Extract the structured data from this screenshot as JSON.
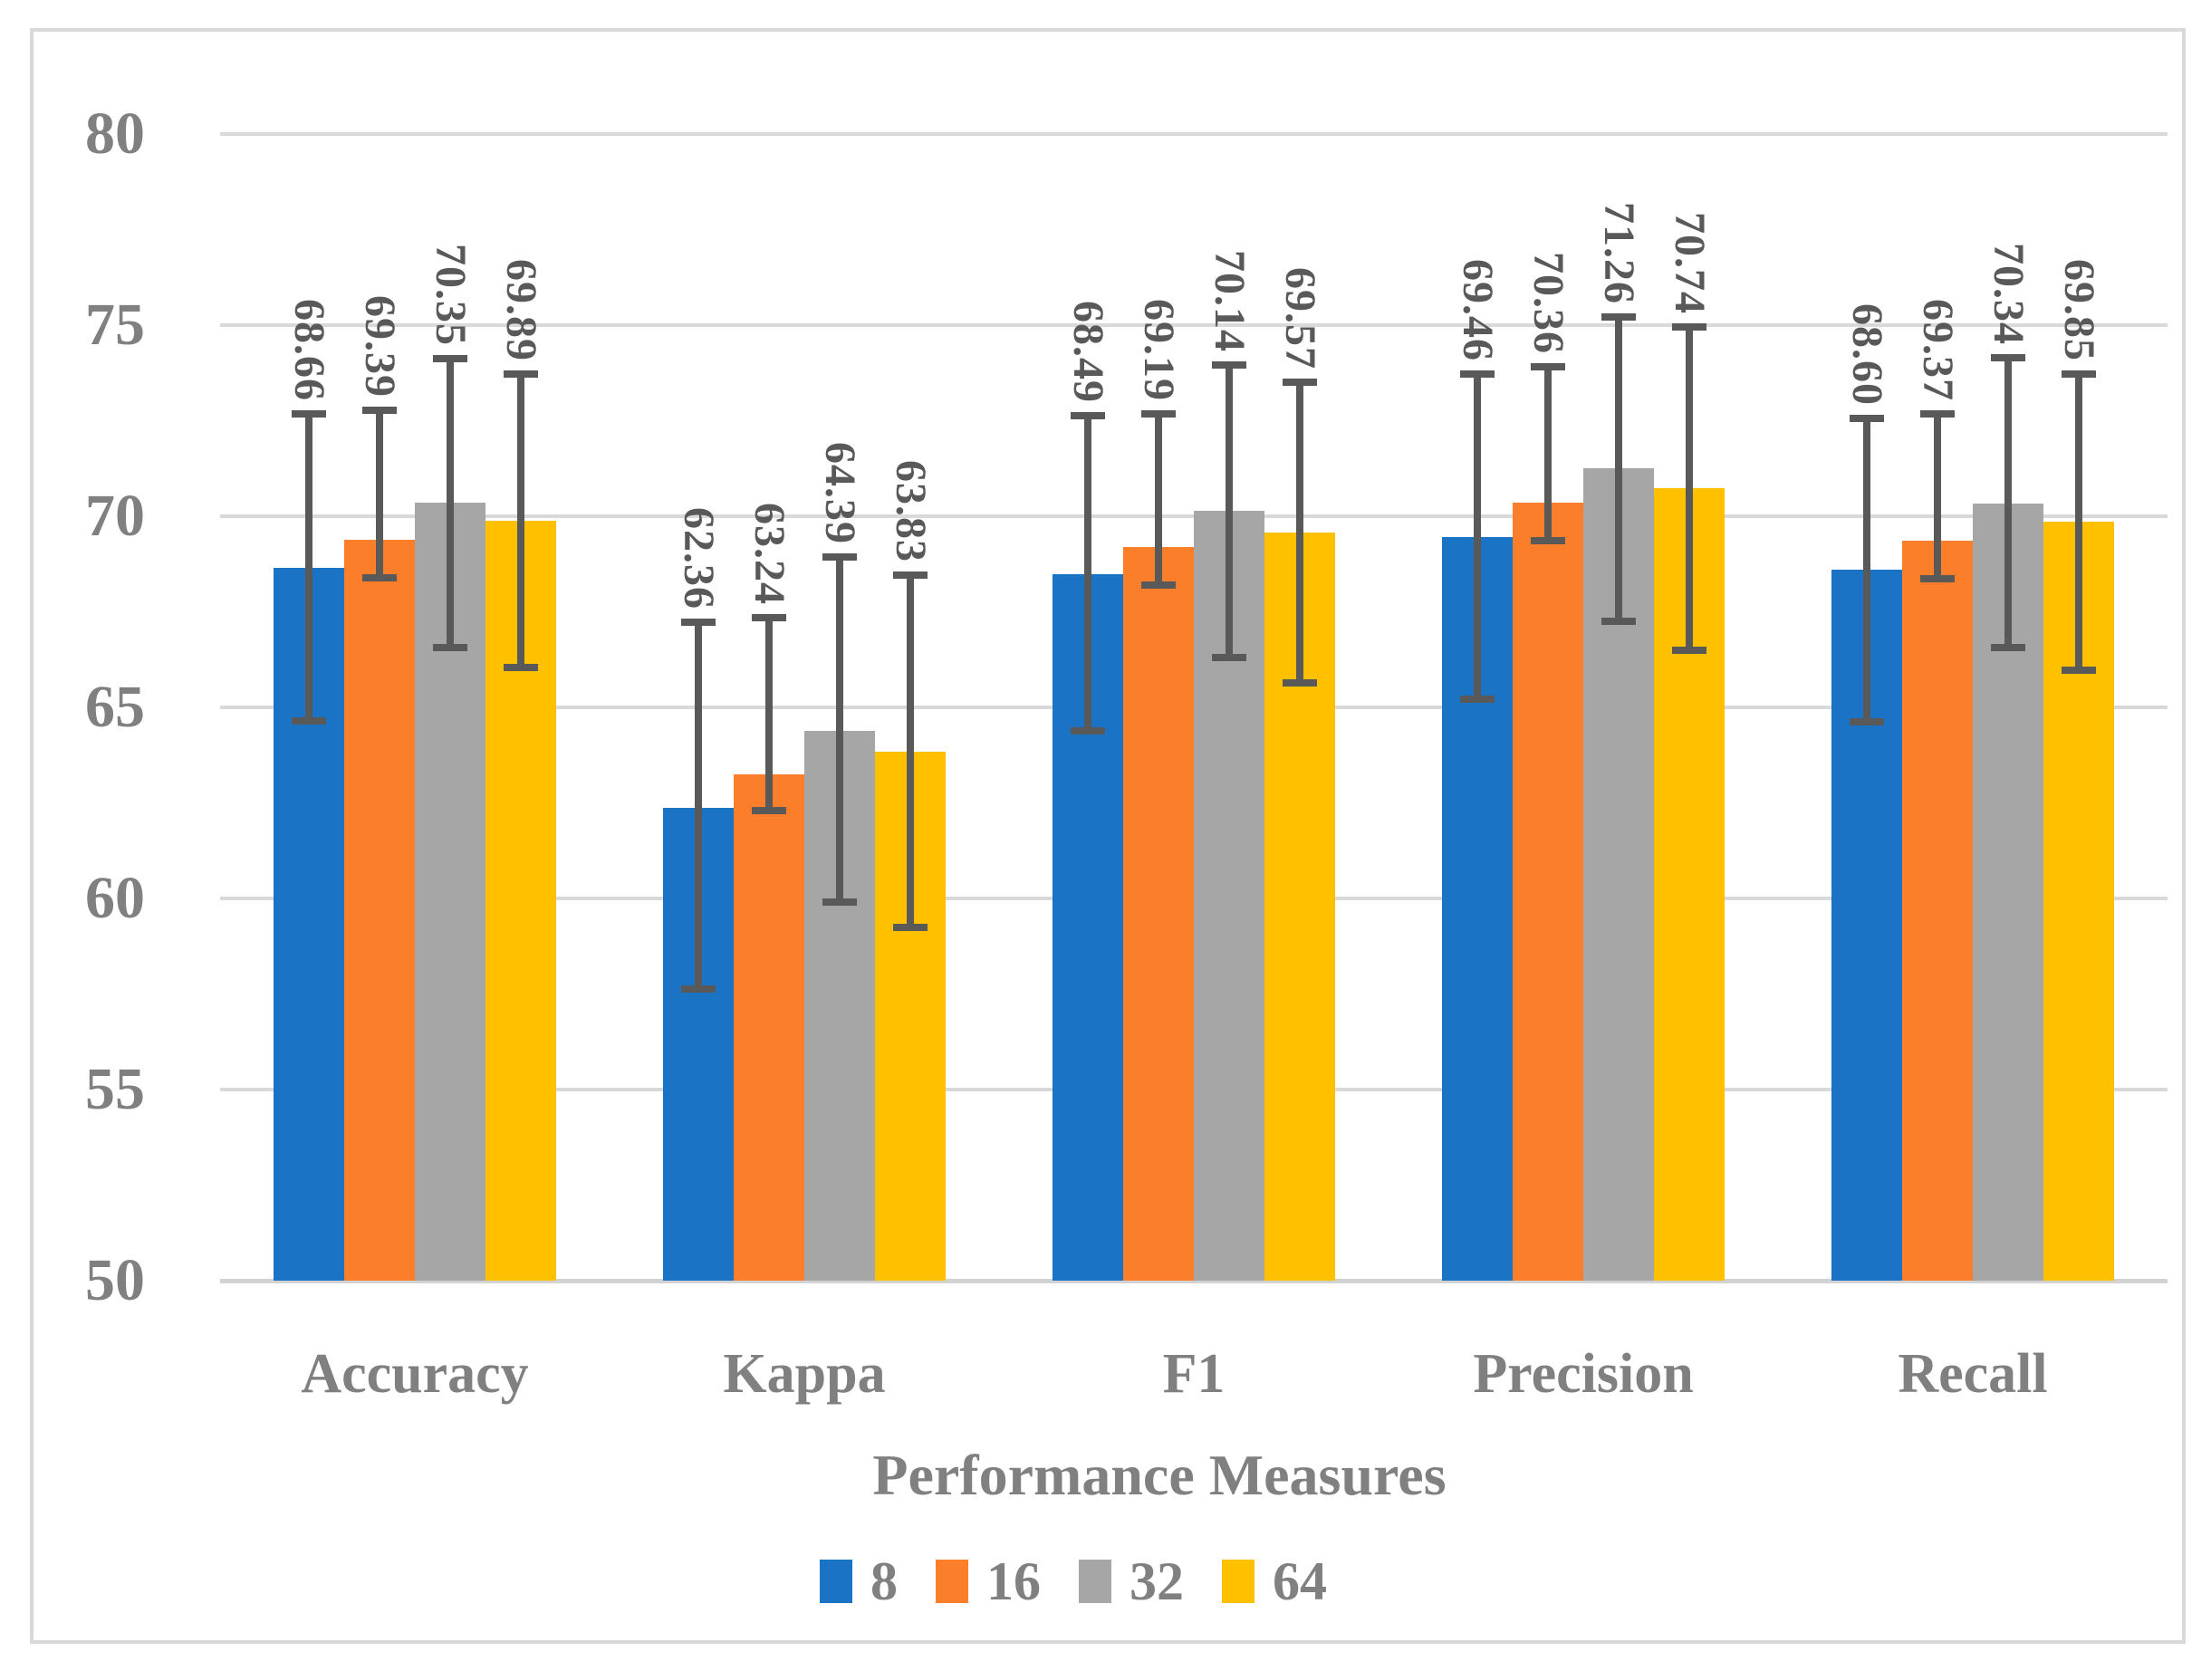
{
  "figure": {
    "background": "#FFFFFF",
    "border_color": "#D9D9D9"
  },
  "chart_data": {
    "type": "bar",
    "title": "",
    "xlabel": "Performance Measures",
    "ylabel": "",
    "ylim": [
      50,
      80
    ],
    "yticks": [
      80,
      75,
      70,
      65,
      60,
      55,
      50
    ],
    "grid": true,
    "legend_position": "bottom-center",
    "gridline_color": "#D9D9D9",
    "axis_line_color": "#D2D2D2",
    "text_color": "#808080",
    "data_label_color": "#595959",
    "error_bar_color": "#595959",
    "categories": [
      "Accuracy",
      "Kappa",
      "F1",
      "Precision",
      "Recall"
    ],
    "series": [
      {
        "name": "8",
        "color": "#1B73C5",
        "values": [
          68.66,
          62.36,
          68.49,
          69.46,
          68.6
        ],
        "err_low": [
          64.64,
          57.63,
          64.38,
          65.21,
          64.62
        ],
        "err_high": [
          72.68,
          67.23,
          72.63,
          73.71,
          72.56
        ]
      },
      {
        "name": "16",
        "color": "#FB7E2A",
        "values": [
          69.39,
          63.24,
          69.19,
          70.36,
          69.37
        ],
        "err_low": [
          68.4,
          62.3,
          68.2,
          69.36,
          68.36
        ],
        "err_high": [
          72.77,
          67.35,
          72.68,
          73.91,
          72.68
        ]
      },
      {
        "name": "32",
        "color": "#A6A6A6",
        "values": [
          70.35,
          64.39,
          70.14,
          71.26,
          70.34
        ],
        "err_low": [
          66.56,
          59.91,
          66.3,
          67.25,
          66.56
        ],
        "err_high": [
          74.12,
          68.93,
          73.96,
          75.21,
          74.15
        ]
      },
      {
        "name": "64",
        "color": "#FFC000",
        "values": [
          69.89,
          63.83,
          69.57,
          70.74,
          69.85
        ],
        "err_low": [
          66.04,
          59.24,
          65.64,
          66.49,
          65.97
        ],
        "err_high": [
          73.72,
          68.46,
          73.51,
          74.95,
          73.72
        ]
      }
    ]
  }
}
